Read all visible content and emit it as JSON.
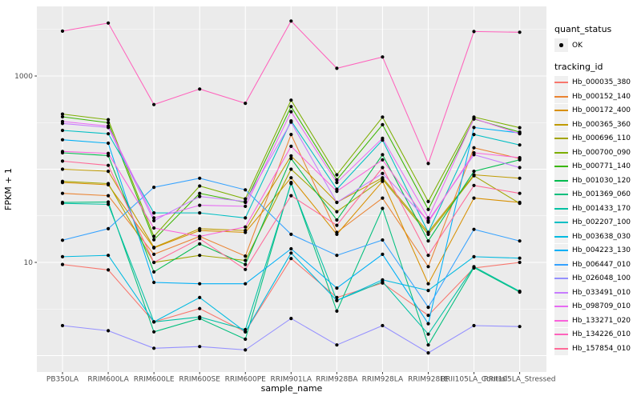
{
  "chart_data": {
    "type": "line",
    "title": "",
    "xlabel": "sample_name",
    "ylabel": "FPKM + 1",
    "yscale": "log10",
    "y_tick_labels": [
      "1000",
      "10"
    ],
    "y_tick_values": [
      1000,
      10
    ],
    "y_major_gridlines": [
      1,
      10,
      100,
      1000
    ],
    "y_minor_gridlines": [
      3.162,
      31.62,
      316.2,
      3162
    ],
    "ylim_log": [
      0.67,
      5600
    ],
    "grid": "on",
    "panel_bg": "#EBEBEB",
    "grid_color": "#FFFFFF",
    "point_color": "#000000",
    "axis_text_color": "#4D4D4D",
    "tick_color": "#333333",
    "legend_position": "right",
    "categories": [
      "PB350LA",
      "RRIM600LA",
      "RRIM600LE",
      "RRIM600SE",
      "RRIM600PE",
      "RRIM901LA",
      "RRIM928BA",
      "RRIM928LA",
      "RRIM928LE",
      "RRII105LA_Control",
      "RRII105LA_Stressed"
    ],
    "series": [
      {
        "name": "Hb_000035_380",
        "color": "#F8766D",
        "values": [
          9.5,
          8.3,
          2.3,
          3.2,
          1.8,
          11,
          4.2,
          6,
          2.7,
          8.7,
          10
        ]
      },
      {
        "name": "Hb_000152_140",
        "color": "#EA8331",
        "values": [
          55,
          52,
          12.2,
          19,
          11.7,
          236,
          21,
          49,
          9,
          170,
          130
        ]
      },
      {
        "name": "Hb_000172_400",
        "color": "#D89000",
        "values": [
          72,
          68,
          14.3,
          22,
          21,
          81,
          20,
          74,
          5.9,
          49,
          44
        ]
      },
      {
        "name": "Hb_000365_360",
        "color": "#C09B00",
        "values": [
          100,
          95,
          14.5,
          23,
          22,
          139,
          44,
          81,
          21,
          87,
          80
        ]
      },
      {
        "name": "Hb_000696_110",
        "color": "#A3A500",
        "values": [
          74,
          70,
          10,
          11.9,
          10.5,
          100,
          35,
          78,
          20,
          85,
          43
        ]
      },
      {
        "name": "Hb_000700_090",
        "color": "#7CAE00",
        "values": [
          390,
          340,
          19,
          66,
          48,
          550,
          87,
          362,
          45,
          363,
          279
        ]
      },
      {
        "name": "Hb_000771_140",
        "color": "#39B600",
        "values": [
          365,
          315,
          17.5,
          55,
          44,
          470,
          77,
          300,
          37,
          345,
          250
        ]
      },
      {
        "name": "Hb_001030_120",
        "color": "#00BB4E",
        "values": [
          150,
          140,
          7.9,
          15.8,
          9.5,
          130,
          28.5,
          143,
          17,
          95,
          126
        ]
      },
      {
        "name": "Hb_001369_060",
        "color": "#00BF7D",
        "values": [
          44,
          44.5,
          1.8,
          2.5,
          1.5,
          72,
          3,
          38,
          1.3,
          8.8,
          4.8
        ]
      },
      {
        "name": "Hb_001433_170",
        "color": "#00C1A3",
        "values": [
          43,
          42,
          2.3,
          2.6,
          1.9,
          70,
          3.9,
          6.2,
          1.7,
          9,
          4.9
        ]
      },
      {
        "name": "Hb_002207_100",
        "color": "#00BFC4",
        "values": [
          261,
          240,
          34,
          34,
          30,
          330,
          61,
          205,
          21,
          236,
          182
        ]
      },
      {
        "name": "Hb_003638_030",
        "color": "#00BAE0",
        "values": [
          11.5,
          11.9,
          2.3,
          4.2,
          1.8,
          12.6,
          3.9,
          6.5,
          5,
          11.5,
          11.1
        ]
      },
      {
        "name": "Hb_004223_130",
        "color": "#00B0F6",
        "values": [
          207,
          190,
          6.1,
          5.9,
          5.9,
          14,
          5.3,
          12.2,
          2.2,
          280,
          245
        ]
      },
      {
        "name": "Hb_006447_010",
        "color": "#35A2FF",
        "values": [
          17.3,
          23,
          64,
          80,
          60,
          20,
          11.9,
          17.4,
          3.3,
          22.6,
          17
        ]
      },
      {
        "name": "Hb_026048_100",
        "color": "#9590FF",
        "values": [
          2.1,
          1.85,
          1.2,
          1.25,
          1.15,
          2.5,
          1.3,
          2.1,
          1.07,
          2.1,
          2.05
        ]
      },
      {
        "name": "Hb_033491_010",
        "color": "#C77CFF",
        "values": [
          310,
          280,
          28,
          51,
          45,
          320,
          44,
          90,
          28,
          143,
          104
        ]
      },
      {
        "name": "Hb_098709_010",
        "color": "#E76BF3",
        "values": [
          325,
          290,
          30,
          41,
          40,
          413,
          72,
          215,
          30,
          350,
          240
        ]
      },
      {
        "name": "Hb_133271_020",
        "color": "#FA62DB",
        "values": [
          155,
          148,
          23.4,
          19,
          24,
          176,
          58,
          126,
          27,
          150,
          133
        ]
      },
      {
        "name": "Hb_134226_010",
        "color": "#FF62BC",
        "values": [
          3030,
          3700,
          494,
          725,
          510,
          3890,
          1210,
          1600,
          115,
          3000,
          2950
        ]
      },
      {
        "name": "Hb_157854_010",
        "color": "#FF6A98",
        "values": [
          122,
          110,
          10,
          18,
          8.4,
          52,
          25,
          104,
          11.9,
          67,
          55
        ]
      }
    ]
  },
  "legend": {
    "quant_status_title": "quant_status",
    "quant_status_value": "OK",
    "tracking_id_title": "tracking_id"
  }
}
